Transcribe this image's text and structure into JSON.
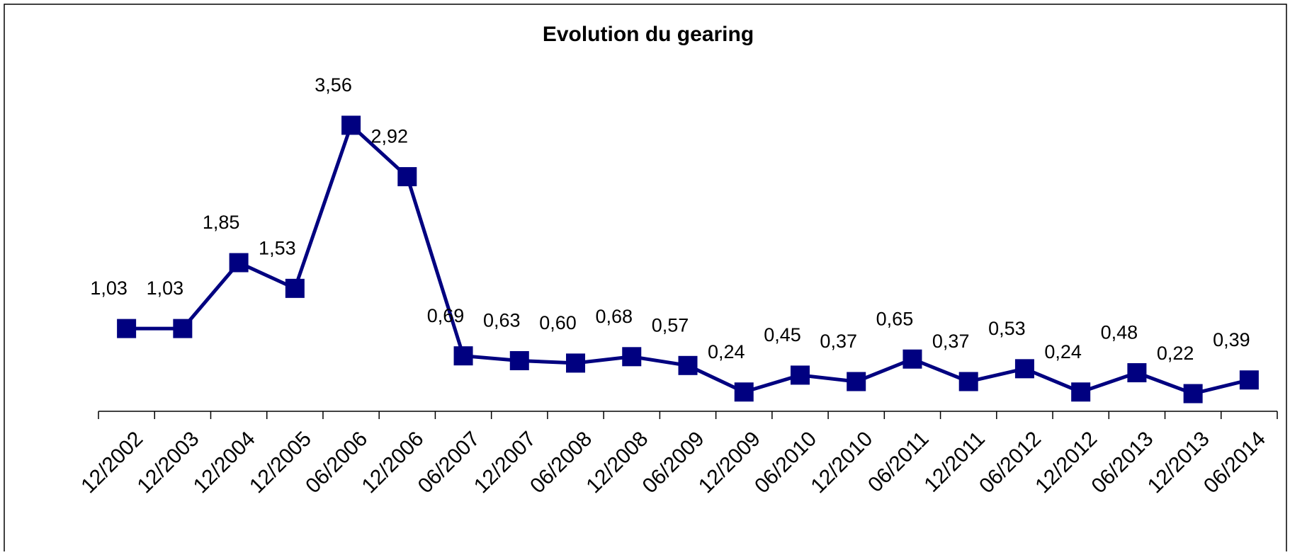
{
  "chart_data": {
    "type": "line",
    "title": "Evolution du gearing",
    "categories": [
      "12/2002",
      "12/2003",
      "12/2004",
      "12/2005",
      "06/2006",
      "12/2006",
      "06/2007",
      "12/2007",
      "06/2008",
      "12/2008",
      "06/2009",
      "12/2009",
      "06/2010",
      "12/2010",
      "06/2011",
      "12/2011",
      "06/2012",
      "12/2012",
      "06/2013",
      "12/2013",
      "06/2014"
    ],
    "values": [
      1.03,
      1.03,
      1.85,
      1.53,
      3.56,
      2.92,
      0.69,
      0.63,
      0.6,
      0.68,
      0.57,
      0.24,
      0.45,
      0.37,
      0.65,
      0.37,
      0.53,
      0.24,
      0.48,
      0.22,
      0.39
    ],
    "value_labels": [
      "1,03",
      "1,03",
      "1,85",
      "1,53",
      "3,56",
      "2,92",
      "0,69",
      "0,63",
      "0,60",
      "0,68",
      "0,57",
      "0,24",
      "0,45",
      "0,37",
      "0,65",
      "0,37",
      "0,53",
      "0,24",
      "0,48",
      "0,22",
      "0,39"
    ],
    "color": "#000080",
    "ylim": [
      0,
      4
    ]
  }
}
